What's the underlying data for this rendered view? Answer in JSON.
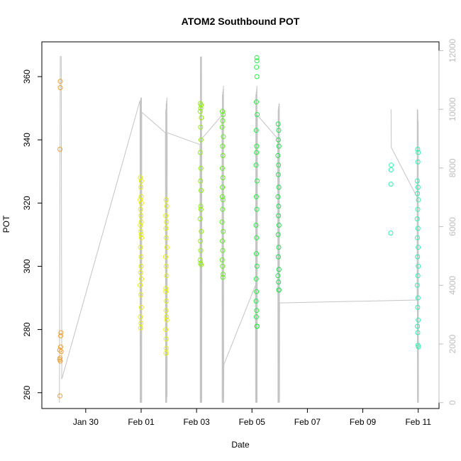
{
  "chart_data": {
    "type": "scatter",
    "title": "ATOM2 Southbound POT",
    "xlabel": "Date",
    "ylabel": "POT",
    "xlim": [
      "2025-01-28T10:00",
      "2025-02-11T18:00"
    ],
    "ylim": [
      255,
      371
    ],
    "y2lim": [
      -200,
      12300
    ],
    "x_ticks": [
      {
        "t": "2025-01-30",
        "label": "Jan 30"
      },
      {
        "t": "2025-02-01",
        "label": "Feb 01"
      },
      {
        "t": "2025-02-03",
        "label": "Feb 03"
      },
      {
        "t": "2025-02-05",
        "label": "Feb 05"
      },
      {
        "t": "2025-02-07",
        "label": "Feb 07"
      },
      {
        "t": "2025-02-09",
        "label": "Feb 09"
      },
      {
        "t": "2025-02-11",
        "label": "Feb 11"
      }
    ],
    "y_ticks": [
      "260",
      "280",
      "300",
      "320",
      "340",
      "360"
    ],
    "y2_ticks": [
      "0",
      "2000",
      "4000",
      "6000",
      "8000",
      "10000",
      "12000"
    ],
    "colors": {
      "line": "#c4c4c4",
      "axis": "#000000",
      "right_axis": "#bdbdbd"
    },
    "series": [
      {
        "color": "#f0a030",
        "points": [
          [
            "2025-01-29T02:00",
            358.5
          ],
          [
            "2025-01-29T02:00",
            356.5
          ],
          [
            "2025-01-29T01:45",
            337
          ],
          [
            "2025-01-29T02:30",
            279
          ],
          [
            "2025-01-29T02:15",
            278
          ],
          [
            "2025-01-29T02:15",
            274.5
          ],
          [
            "2025-01-29T01:30",
            273.5
          ],
          [
            "2025-01-29T02:45",
            273
          ],
          [
            "2025-01-29T01:45",
            271
          ],
          [
            "2025-01-29T01:30",
            270.5
          ],
          [
            "2025-01-29T02:00",
            270
          ],
          [
            "2025-01-29T01:45",
            259
          ]
        ]
      },
      {
        "color": "#e8f010",
        "points": [
          [
            "2025-01-31T23:20",
            328
          ],
          [
            "2025-02-01T00:10",
            327
          ],
          [
            "2025-01-31T23:40",
            325
          ],
          [
            "2025-02-01T00:00",
            322
          ],
          [
            "2025-01-31T23:10",
            321
          ],
          [
            "2025-02-01T00:20",
            320
          ],
          [
            "2025-01-31T23:30",
            318
          ],
          [
            "2025-01-31T23:50",
            316
          ],
          [
            "2025-02-01T00:05",
            314
          ],
          [
            "2025-01-31T23:15",
            313
          ],
          [
            "2025-01-31T23:45",
            311
          ],
          [
            "2025-02-01T00:15",
            309
          ],
          [
            "2025-01-31T23:25",
            306
          ],
          [
            "2025-01-31T23:55",
            303
          ],
          [
            "2025-02-01T00:00",
            300
          ],
          [
            "2025-01-31T23:35",
            298
          ],
          [
            "2025-02-01T00:20",
            296
          ],
          [
            "2025-01-31T23:10",
            294
          ],
          [
            "2025-01-31T23:40",
            291
          ],
          [
            "2025-02-01T00:10",
            287
          ],
          [
            "2025-01-31T23:20",
            284
          ],
          [
            "2025-01-31T23:50",
            282
          ],
          [
            "2025-01-31T23:30",
            280.5
          ],
          [
            "2025-02-01T00:05",
            310
          ],
          [
            "2025-02-01T21:40",
            321
          ],
          [
            "2025-02-01T22:10",
            319
          ],
          [
            "2025-02-01T21:20",
            316
          ],
          [
            "2025-02-01T22:00",
            314
          ],
          [
            "2025-02-01T21:30",
            312
          ],
          [
            "2025-02-01T21:50",
            309
          ],
          [
            "2025-02-01T22:20",
            306
          ],
          [
            "2025-02-01T21:10",
            303
          ],
          [
            "2025-02-01T21:45",
            300
          ],
          [
            "2025-02-01T22:05",
            297
          ],
          [
            "2025-02-01T21:25",
            293
          ],
          [
            "2025-02-01T21:55",
            289
          ],
          [
            "2025-02-01T21:35",
            286
          ],
          [
            "2025-02-01T22:15",
            283
          ],
          [
            "2025-02-01T21:15",
            280
          ],
          [
            "2025-02-01T21:40",
            277
          ],
          [
            "2025-02-01T21:50",
            274
          ],
          [
            "2025-02-01T21:30",
            272.5
          ],
          [
            "2025-02-01T22:00",
            284
          ],
          [
            "2025-02-01T21:20",
            292
          ]
        ]
      },
      {
        "color": "#8ef010",
        "points": [
          [
            "2025-02-03T03:20",
            351.5
          ],
          [
            "2025-02-03T04:00",
            351
          ],
          [
            "2025-02-03T03:40",
            350
          ],
          [
            "2025-02-03T03:10",
            349
          ],
          [
            "2025-02-03T04:10",
            347
          ],
          [
            "2025-02-03T03:30",
            344
          ],
          [
            "2025-02-03T03:50",
            340
          ],
          [
            "2025-02-03T03:15",
            336
          ],
          [
            "2025-02-03T03:45",
            331
          ],
          [
            "2025-02-03T03:25",
            327
          ],
          [
            "2025-02-03T03:55",
            324
          ],
          [
            "2025-02-03T03:35",
            319
          ],
          [
            "2025-02-03T03:05",
            315
          ],
          [
            "2025-02-03T04:05",
            311
          ],
          [
            "2025-02-03T03:20",
            308
          ],
          [
            "2025-02-03T03:40",
            305
          ],
          [
            "2025-02-03T03:10",
            302
          ],
          [
            "2025-02-03T03:30",
            301
          ],
          [
            "2025-02-03T04:00",
            300.5
          ],
          [
            "2025-02-03T03:50",
            318
          ]
        ]
      },
      {
        "color": "#60f020",
        "points": [
          [
            "2025-02-03T22:20",
            349
          ],
          [
            "2025-02-03T23:00",
            348
          ],
          [
            "2025-02-03T22:40",
            346
          ],
          [
            "2025-02-03T22:10",
            344
          ],
          [
            "2025-02-03T23:10",
            341
          ],
          [
            "2025-02-03T22:30",
            338
          ],
          [
            "2025-02-03T22:50",
            335
          ],
          [
            "2025-02-03T22:15",
            331
          ],
          [
            "2025-02-03T22:45",
            328
          ],
          [
            "2025-02-03T22:25",
            325
          ],
          [
            "2025-02-03T22:55",
            321
          ],
          [
            "2025-02-03T22:35",
            318
          ],
          [
            "2025-02-03T22:05",
            314
          ],
          [
            "2025-02-03T23:05",
            311
          ],
          [
            "2025-02-03T22:20",
            308
          ],
          [
            "2025-02-03T22:40",
            305
          ],
          [
            "2025-02-03T22:10",
            302
          ],
          [
            "2025-02-03T22:30",
            300
          ],
          [
            "2025-02-03T23:00",
            297.5
          ],
          [
            "2025-02-03T22:50",
            296.5
          ],
          [
            "2025-02-03T22:15",
            322
          ]
        ]
      },
      {
        "color": "#20f040",
        "points": [
          [
            "2025-02-05T04:10",
            366
          ],
          [
            "2025-02-05T04:20",
            365
          ],
          [
            "2025-02-05T04:00",
            363
          ],
          [
            "2025-02-05T04:15",
            360
          ],
          [
            "2025-02-05T03:50",
            352
          ],
          [
            "2025-02-05T04:30",
            348
          ],
          [
            "2025-02-05T03:40",
            343
          ],
          [
            "2025-02-05T04:05",
            338
          ],
          [
            "2025-02-05T03:55",
            336
          ],
          [
            "2025-02-05T03:35",
            332
          ],
          [
            "2025-02-05T04:25",
            327
          ],
          [
            "2025-02-05T03:45",
            322
          ],
          [
            "2025-02-05T04:10",
            318
          ],
          [
            "2025-02-05T03:30",
            313
          ],
          [
            "2025-02-05T04:00",
            309
          ],
          [
            "2025-02-05T03:50",
            304
          ],
          [
            "2025-02-05T04:20",
            300
          ],
          [
            "2025-02-05T03:40",
            296
          ],
          [
            "2025-02-05T03:55",
            292
          ],
          [
            "2025-02-05T03:35",
            289
          ],
          [
            "2025-02-05T04:05",
            286
          ],
          [
            "2025-02-05T03:45",
            284
          ],
          [
            "2025-02-05T04:15",
            281
          ],
          [
            "2025-02-05T04:25",
            281
          ]
        ]
      },
      {
        "color": "#20e050",
        "points": [
          [
            "2025-02-05T22:40",
            345
          ],
          [
            "2025-02-05T23:10",
            343
          ],
          [
            "2025-02-05T22:50",
            340
          ],
          [
            "2025-02-05T23:20",
            338
          ],
          [
            "2025-02-05T22:30",
            335
          ],
          [
            "2025-02-05T23:00",
            332
          ],
          [
            "2025-02-05T22:45",
            329
          ],
          [
            "2025-02-05T23:15",
            325
          ],
          [
            "2025-02-05T22:35",
            322
          ],
          [
            "2025-02-05T23:05",
            319
          ],
          [
            "2025-02-05T22:55",
            316
          ],
          [
            "2025-02-05T23:25",
            313
          ],
          [
            "2025-02-05T22:40",
            310
          ],
          [
            "2025-02-05T23:10",
            306
          ],
          [
            "2025-02-05T22:50",
            303
          ],
          [
            "2025-02-05T23:20",
            299
          ],
          [
            "2025-02-05T22:30",
            297
          ],
          [
            "2025-02-05T23:00",
            295
          ],
          [
            "2025-02-05T23:15",
            292.5
          ],
          [
            "2025-02-05T23:25",
            292.5
          ]
        ]
      },
      {
        "color": "#30f0b0",
        "points": [
          [
            "2025-02-10T00:40",
            332
          ],
          [
            "2025-02-10T00:30",
            330.5
          ],
          [
            "2025-02-10T00:20",
            326
          ],
          [
            "2025-02-10T00:10",
            310.5
          ],
          [
            "2025-02-10T23:30",
            337
          ],
          [
            "2025-02-11T00:00",
            336
          ],
          [
            "2025-02-10T23:40",
            333
          ],
          [
            "2025-02-10T23:10",
            327
          ],
          [
            "2025-02-10T23:50",
            325
          ],
          [
            "2025-02-10T23:20",
            323
          ],
          [
            "2025-02-11T00:10",
            321
          ],
          [
            "2025-02-10T23:35",
            318
          ],
          [
            "2025-02-10T23:05",
            315
          ],
          [
            "2025-02-10T23:45",
            312
          ],
          [
            "2025-02-10T23:15",
            309
          ],
          [
            "2025-02-10T23:55",
            306
          ],
          [
            "2025-02-10T23:25",
            303
          ],
          [
            "2025-02-11T00:05",
            300
          ],
          [
            "2025-02-10T23:40",
            297
          ],
          [
            "2025-02-10T23:10",
            294
          ],
          [
            "2025-02-10T23:50",
            290
          ],
          [
            "2025-02-10T23:30",
            287
          ],
          [
            "2025-02-11T00:00",
            283
          ],
          [
            "2025-02-10T23:20",
            281
          ],
          [
            "2025-02-10T23:35",
            279
          ],
          [
            "2025-02-10T23:45",
            275
          ],
          [
            "2025-02-11T00:10",
            274.5
          ]
        ]
      }
    ],
    "line_y2": [
      [
        "2025-01-29T01:15",
        0
      ],
      [
        "2025-01-29T02:00",
        11800
      ],
      [
        "2025-01-29T02:45",
        11800
      ],
      [
        "2025-01-29T03:15",
        800
      ],
      [
        "2025-01-31T23:00",
        10300
      ],
      [
        "2025-01-31T23:10",
        0
      ],
      [
        "2025-01-31T23:20",
        10300
      ],
      [
        "2025-01-31T23:30",
        0
      ],
      [
        "2025-01-31T23:40",
        10400
      ],
      [
        "2025-01-31T23:50",
        0
      ],
      [
        "2025-02-01T00:00",
        10400
      ],
      [
        "2025-02-01T00:10",
        0
      ],
      [
        "2025-02-01T00:20",
        10400
      ],
      [
        "2025-02-01T00:30",
        0
      ],
      [
        "2025-02-01T00:35",
        9900
      ],
      [
        "2025-02-01T21:00",
        9200
      ],
      [
        "2025-02-01T21:10",
        0
      ],
      [
        "2025-02-01T21:20",
        10000
      ],
      [
        "2025-02-01T21:30",
        0
      ],
      [
        "2025-02-01T21:40",
        10200
      ],
      [
        "2025-02-01T21:50",
        0
      ],
      [
        "2025-02-01T22:00",
        10300
      ],
      [
        "2025-02-01T22:10",
        0
      ],
      [
        "2025-02-01T22:20",
        10400
      ],
      [
        "2025-02-01T22:30",
        200
      ],
      [
        "2025-02-01T22:35",
        9200
      ],
      [
        "2025-02-03T03:00",
        8800
      ],
      [
        "2025-02-03T03:10",
        0
      ],
      [
        "2025-02-03T03:20",
        11800
      ],
      [
        "2025-02-03T03:30",
        0
      ],
      [
        "2025-02-03T03:40",
        11800
      ],
      [
        "2025-02-03T03:50",
        0
      ],
      [
        "2025-02-03T04:00",
        11800
      ],
      [
        "2025-02-03T04:10",
        0
      ],
      [
        "2025-02-03T04:20",
        11800
      ],
      [
        "2025-02-03T04:30",
        0
      ],
      [
        "2025-02-03T04:35",
        9000
      ],
      [
        "2025-02-03T22:00",
        9800
      ],
      [
        "2025-02-03T22:10",
        0
      ],
      [
        "2025-02-03T22:20",
        10500
      ],
      [
        "2025-02-03T22:30",
        0
      ],
      [
        "2025-02-03T22:40",
        10600
      ],
      [
        "2025-02-03T22:50",
        0
      ],
      [
        "2025-02-03T23:00",
        10700
      ],
      [
        "2025-02-03T23:10",
        0
      ],
      [
        "2025-02-03T23:20",
        10800
      ],
      [
        "2025-02-03T23:30",
        0
      ],
      [
        "2025-02-03T23:40",
        1300
      ],
      [
        "2025-02-05T03:00",
        4000
      ],
      [
        "2025-02-05T03:10",
        0
      ],
      [
        "2025-02-05T03:20",
        10500
      ],
      [
        "2025-02-05T03:30",
        0
      ],
      [
        "2025-02-05T03:40",
        10600
      ],
      [
        "2025-02-05T03:50",
        0
      ],
      [
        "2025-02-05T04:00",
        10700
      ],
      [
        "2025-02-05T04:10",
        0
      ],
      [
        "2025-02-05T04:20",
        10800
      ],
      [
        "2025-02-05T04:30",
        0
      ],
      [
        "2025-02-05T04:40",
        9800
      ],
      [
        "2025-02-05T22:20",
        9000
      ],
      [
        "2025-02-05T22:30",
        0
      ],
      [
        "2025-02-05T22:40",
        10000
      ],
      [
        "2025-02-05T22:50",
        0
      ],
      [
        "2025-02-05T23:00",
        10100
      ],
      [
        "2025-02-05T23:10",
        0
      ],
      [
        "2025-02-05T23:20",
        10200
      ],
      [
        "2025-02-05T23:30",
        0
      ],
      [
        "2025-02-05T23:40",
        10200
      ],
      [
        "2025-02-05T23:50",
        0
      ],
      [
        "2025-02-06T00:00",
        3400
      ],
      [
        "2025-02-10T23:00",
        3500
      ],
      [
        "2025-02-10T23:10",
        10000
      ],
      [
        "2025-02-10T23:20",
        0
      ],
      [
        "2025-02-10T23:30",
        10000
      ],
      [
        "2025-02-10T23:40",
        9800
      ],
      [
        "2025-02-10T23:50",
        0
      ],
      [
        "2025-02-11T00:00",
        9600
      ],
      [
        "2025-02-11T00:10",
        0
      ]
    ],
    "line_y2_extra": [
      [
        "2025-02-10T00:30",
        10000
      ],
      [
        "2025-02-10T00:40",
        8700
      ],
      [
        "2025-02-10T23:00",
        7000
      ]
    ],
    "grid": false,
    "legend": "none"
  }
}
